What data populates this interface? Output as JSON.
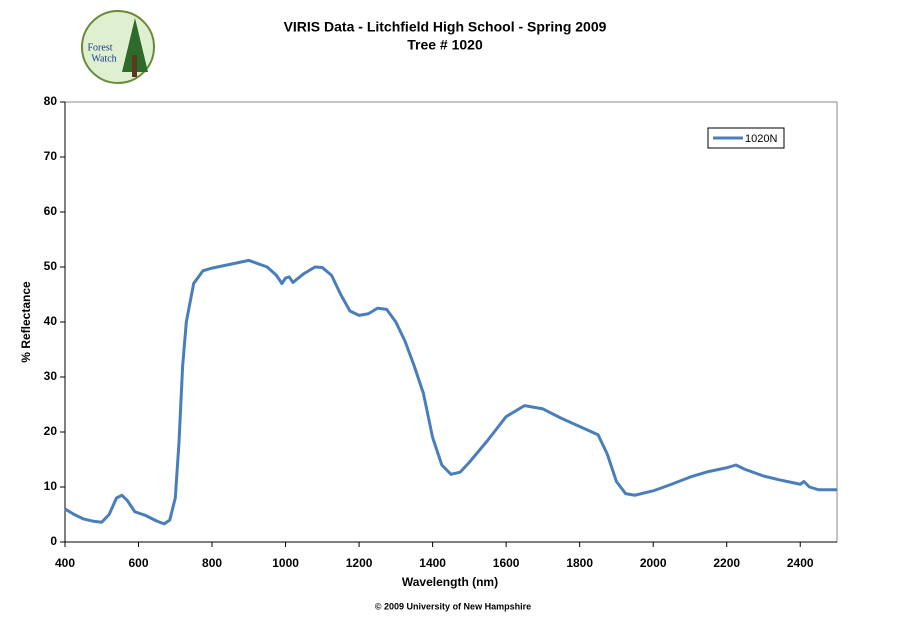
{
  "logo_text": [
    "Forest",
    "Watch"
  ],
  "chart_data": {
    "type": "line",
    "title": "VIRIS Data - Litchfield High School - Spring 2009",
    "subtitle": "Tree # 1020",
    "x_label": "Wavelength  (nm)",
    "y_label": "% Reflectance",
    "caption": "© 2009 University of New Hampshire",
    "x": [
      400,
      425,
      450,
      475,
      500,
      520,
      540,
      555,
      570,
      590,
      620,
      650,
      670,
      685,
      700,
      710,
      720,
      730,
      750,
      775,
      800,
      850,
      900,
      950,
      975,
      990,
      1000,
      1010,
      1020,
      1050,
      1080,
      1100,
      1125,
      1150,
      1175,
      1200,
      1225,
      1250,
      1275,
      1300,
      1325,
      1350,
      1375,
      1400,
      1425,
      1450,
      1475,
      1500,
      1550,
      1600,
      1650,
      1700,
      1750,
      1800,
      1850,
      1875,
      1900,
      1925,
      1950,
      2000,
      2050,
      2100,
      2150,
      2200,
      2225,
      2250,
      2300,
      2350,
      2400,
      2410,
      2425,
      2450,
      2500
    ],
    "series": [
      {
        "name": "1020N",
        "color": "#4a7ebb",
        "values": [
          6,
          5,
          4.2,
          3.8,
          3.6,
          5,
          8,
          8.5,
          7.5,
          5.5,
          4.8,
          3.8,
          3.3,
          4,
          8,
          18,
          32,
          40,
          47,
          49.3,
          49.8,
          50.5,
          51.2,
          50,
          48.5,
          47,
          48,
          48.2,
          47.2,
          48.8,
          50,
          49.9,
          48.5,
          45,
          42,
          41.2,
          41.5,
          42.5,
          42.3,
          40,
          36.5,
          32,
          27,
          19,
          14,
          12.3,
          12.7,
          14.5,
          18.5,
          22.8,
          24.8,
          24.2,
          22.5,
          21,
          19.5,
          16,
          11,
          8.8,
          8.5,
          9.3,
          10.5,
          11.8,
          12.8,
          13.5,
          14,
          13.2,
          12,
          11.2,
          10.5,
          11,
          10,
          9.5,
          9.5
        ]
      }
    ],
    "xlim": [
      400,
      2500
    ],
    "xticks": [
      400,
      600,
      800,
      1000,
      1200,
      1400,
      1600,
      1800,
      2000,
      2200,
      2400
    ],
    "ylim": [
      0,
      80
    ],
    "yticks": [
      0,
      10,
      20,
      30,
      40,
      50,
      60,
      70,
      80
    ],
    "grid": false,
    "legend": "top-right"
  }
}
